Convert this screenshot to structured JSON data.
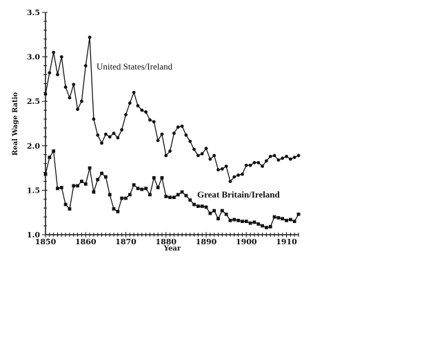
{
  "chart_data": {
    "type": "line",
    "xlabel": "Year",
    "ylabel": "Real Wage Ratio",
    "xlim": [
      1850,
      1913
    ],
    "ylim": [
      1.0,
      3.5
    ],
    "x_ticks": [
      1850,
      1860,
      1870,
      1880,
      1890,
      1900,
      1910
    ],
    "y_ticks": [
      1.0,
      1.5,
      2.0,
      2.5,
      3.0,
      3.5
    ],
    "x_tick_labels": [
      "1850",
      "1860",
      "1870",
      "1880",
      "1890",
      "1900",
      "1910"
    ],
    "y_tick_labels": [
      "1.0",
      "1.5",
      "2.0",
      "2.5",
      "3.0",
      "3.5"
    ],
    "grid": false,
    "x": [
      1850,
      1851,
      1852,
      1853,
      1854,
      1855,
      1856,
      1857,
      1858,
      1859,
      1860,
      1861,
      1862,
      1863,
      1864,
      1865,
      1866,
      1867,
      1868,
      1869,
      1870,
      1871,
      1872,
      1873,
      1874,
      1875,
      1876,
      1877,
      1878,
      1879,
      1880,
      1881,
      1882,
      1883,
      1884,
      1885,
      1886,
      1887,
      1888,
      1889,
      1890,
      1891,
      1892,
      1893,
      1894,
      1895,
      1896,
      1897,
      1898,
      1899,
      1900,
      1901,
      1902,
      1903,
      1904,
      1905,
      1906,
      1907,
      1908,
      1909,
      1910,
      1911,
      1912,
      1913
    ],
    "series": [
      {
        "name": "United States/Ireland",
        "marker": "circle",
        "label_position": "upper-middle",
        "values": [
          2.58,
          2.82,
          3.05,
          2.8,
          3.0,
          2.66,
          2.54,
          2.69,
          2.41,
          2.5,
          2.9,
          3.22,
          2.3,
          2.12,
          2.03,
          2.13,
          2.1,
          2.14,
          2.09,
          2.18,
          2.35,
          2.48,
          2.6,
          2.45,
          2.4,
          2.38,
          2.29,
          2.27,
          2.06,
          2.13,
          1.89,
          1.94,
          2.14,
          2.21,
          2.22,
          2.12,
          2.05,
          1.96,
          1.89,
          1.91,
          1.97,
          1.85,
          1.89,
          1.73,
          1.74,
          1.77,
          1.6,
          1.65,
          1.67,
          1.68,
          1.78,
          1.78,
          1.81,
          1.81,
          1.77,
          1.83,
          1.88,
          1.89,
          1.84,
          1.86,
          1.88,
          1.85,
          1.87,
          1.89
        ]
      },
      {
        "name": "Great Britain/Ireland",
        "marker": "square",
        "label_position": "lower-right",
        "values": [
          1.68,
          1.87,
          1.94,
          1.52,
          1.53,
          1.34,
          1.29,
          1.55,
          1.55,
          1.6,
          1.57,
          1.75,
          1.48,
          1.62,
          1.69,
          1.65,
          1.45,
          1.29,
          1.26,
          1.41,
          1.41,
          1.45,
          1.56,
          1.52,
          1.51,
          1.52,
          1.45,
          1.64,
          1.53,
          1.64,
          1.43,
          1.42,
          1.42,
          1.45,
          1.48,
          1.44,
          1.39,
          1.34,
          1.32,
          1.32,
          1.31,
          1.24,
          1.27,
          1.18,
          1.27,
          1.23,
          1.16,
          1.17,
          1.16,
          1.15,
          1.15,
          1.13,
          1.14,
          1.12,
          1.1,
          1.08,
          1.09,
          1.2,
          1.19,
          1.18,
          1.16,
          1.17,
          1.15,
          1.23
        ]
      }
    ]
  }
}
